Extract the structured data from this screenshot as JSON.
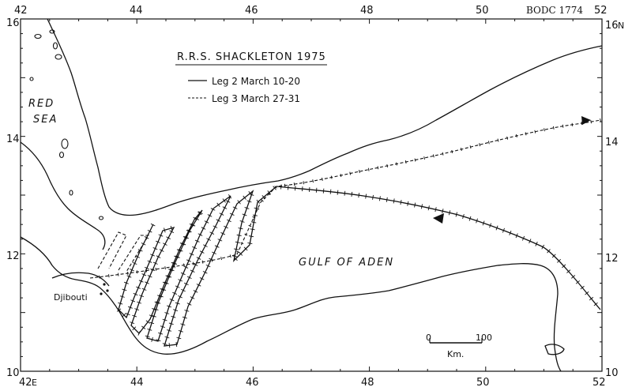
{
  "header": {
    "catalog_id": "BODC 1774"
  },
  "title": "R.R.S. SHACKLETON 1975",
  "legend": {
    "items": [
      {
        "label": "Leg 2  March 10-20",
        "style": "solid"
      },
      {
        "label": "Leg 3  March 27-31",
        "style": "dashed"
      }
    ]
  },
  "axes": {
    "longitudes": [
      "42",
      "44",
      "46",
      "48",
      "50",
      "52"
    ],
    "latitudes": [
      "16",
      "14",
      "12",
      "10"
    ],
    "north_suffix": "N",
    "east_suffix": "E"
  },
  "places": {
    "sea_line1": "RED",
    "sea_line2": "SEA",
    "gulf": "GULF OF ADEN",
    "city": "Djibouti"
  },
  "scale_bar": {
    "start": "0",
    "end": "100",
    "unit": "Km."
  },
  "colors": {
    "ink": "#111111",
    "paper": "#ffffff"
  }
}
